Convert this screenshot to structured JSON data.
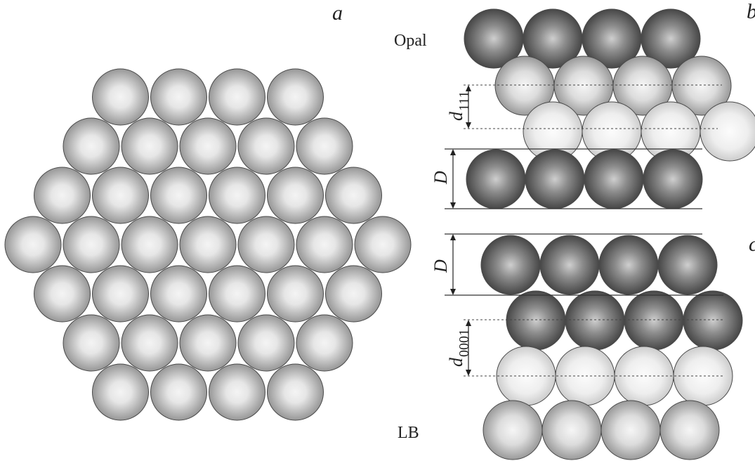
{
  "labels": {
    "panel_a": "a",
    "panel_b": "b",
    "panel_c": "c",
    "opal": "Opal",
    "lb": "LB",
    "D_top": "D",
    "D_bottom": "D",
    "d111_main": "d",
    "d111_sub": "111",
    "d0001_main": "d",
    "d0001_sub": "0001"
  },
  "panel_a": {
    "hex_rows": [
      4,
      5,
      6,
      7,
      6,
      5,
      4
    ]
  },
  "panel_b": {
    "layers": [
      {
        "name": "dark",
        "count": 4
      },
      {
        "name": "medium",
        "count": 4
      },
      {
        "name": "light",
        "count": 4
      },
      {
        "name": "dark",
        "count": 4
      }
    ]
  },
  "panel_c": {
    "layers": [
      {
        "name": "dark",
        "count": 4
      },
      {
        "name": "dark",
        "count": 4
      },
      {
        "name": "light",
        "count": 4
      },
      {
        "name": "medium",
        "count": 4
      }
    ]
  },
  "colors": {
    "dark_center": "#c8c8c8",
    "dark_edge": "#3a3a3a",
    "medium_center": "#f2f2f2",
    "medium_edge": "#8c8c8c",
    "light_center": "#fbfbfb",
    "light_edge": "#c4c4c4",
    "a_center": "#f4f4f4",
    "a_edge": "#8a8a8a",
    "outline": "#4a4a4a",
    "line": "#333333"
  }
}
